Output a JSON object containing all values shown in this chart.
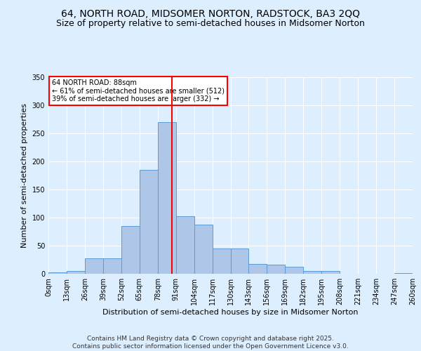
{
  "title": "64, NORTH ROAD, MIDSOMER NORTON, RADSTOCK, BA3 2QQ",
  "subtitle": "Size of property relative to semi-detached houses in Midsomer Norton",
  "xlabel": "Distribution of semi-detached houses by size in Midsomer Norton",
  "ylabel": "Number of semi-detached properties",
  "annotation_title": "64 NORTH ROAD: 88sqm",
  "annotation_line1": "← 61% of semi-detached houses are smaller (512)",
  "annotation_line2": "39% of semi-detached houses are larger (332) →",
  "property_size": 88,
  "footnote": "Contains HM Land Registry data © Crown copyright and database right 2025.\nContains public sector information licensed under the Open Government Licence v3.0.",
  "bin_edges": [
    0,
    13,
    26,
    39,
    52,
    65,
    78,
    91,
    104,
    117,
    130,
    143,
    156,
    169,
    182,
    195,
    208,
    221,
    234,
    247,
    260
  ],
  "bin_labels": [
    "0sqm",
    "13sqm",
    "26sqm",
    "39sqm",
    "52sqm",
    "65sqm",
    "78sqm",
    "91sqm",
    "104sqm",
    "117sqm",
    "130sqm",
    "143sqm",
    "156sqm",
    "169sqm",
    "182sqm",
    "195sqm",
    "208sqm",
    "221sqm",
    "234sqm",
    "247sqm",
    "260sqm"
  ],
  "counts": [
    2,
    5,
    28,
    28,
    85,
    185,
    270,
    103,
    88,
    45,
    45,
    17,
    16,
    12,
    5,
    5,
    0,
    0,
    0,
    1
  ],
  "bar_color": "#aec6e8",
  "bar_edge_color": "#5b9bd5",
  "vline_color": "#ff0000",
  "vline_x": 88,
  "background_color": "#ddeeff",
  "annotation_box_color": "#ffffff",
  "annotation_box_edge": "#ff0000",
  "ylim": [
    0,
    350
  ],
  "yticks": [
    0,
    50,
    100,
    150,
    200,
    250,
    300,
    350
  ],
  "title_fontsize": 10,
  "subtitle_fontsize": 9,
  "label_fontsize": 8,
  "tick_fontsize": 7,
  "footnote_fontsize": 6.5
}
